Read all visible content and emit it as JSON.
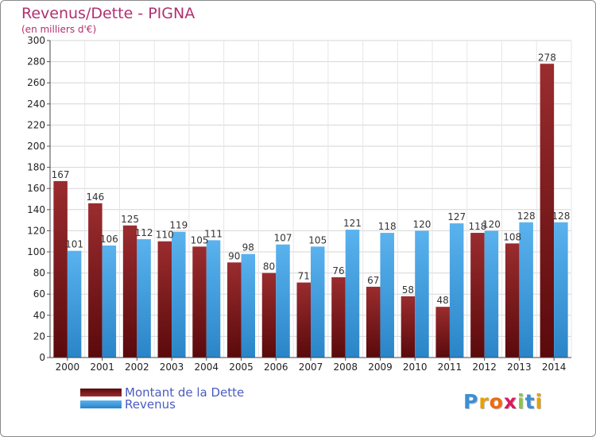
{
  "title": "Revenus/Dette - PIGNA",
  "subtitle": "(en milliers d'€)",
  "colors": {
    "dette": "#7a1c1e",
    "revenus": "#4aa3e6",
    "title": "#b03070"
  },
  "legend": {
    "dette_label": "Montant de la Dette",
    "revenus_label": "Revenus"
  },
  "logo": "Proxiti",
  "chart_data": {
    "type": "bar",
    "categories": [
      "2000",
      "2001",
      "2002",
      "2003",
      "2004",
      "2005",
      "2006",
      "2007",
      "2008",
      "2009",
      "2010",
      "2011",
      "2012",
      "2013",
      "2014"
    ],
    "series": [
      {
        "name": "Montant de la Dette",
        "values": [
          167,
          146,
          125,
          110,
          105,
          90,
          80,
          71,
          76,
          67,
          58,
          48,
          118,
          108,
          278
        ]
      },
      {
        "name": "Revenus",
        "values": [
          101,
          106,
          112,
          119,
          111,
          98,
          107,
          105,
          121,
          118,
          120,
          127,
          120,
          128,
          128
        ]
      }
    ],
    "ylim": [
      0,
      300
    ],
    "yticks": [
      0,
      20,
      40,
      60,
      80,
      100,
      120,
      140,
      160,
      180,
      200,
      220,
      240,
      260,
      280,
      300
    ],
    "grid": true,
    "legend_position": "bottom-left"
  }
}
